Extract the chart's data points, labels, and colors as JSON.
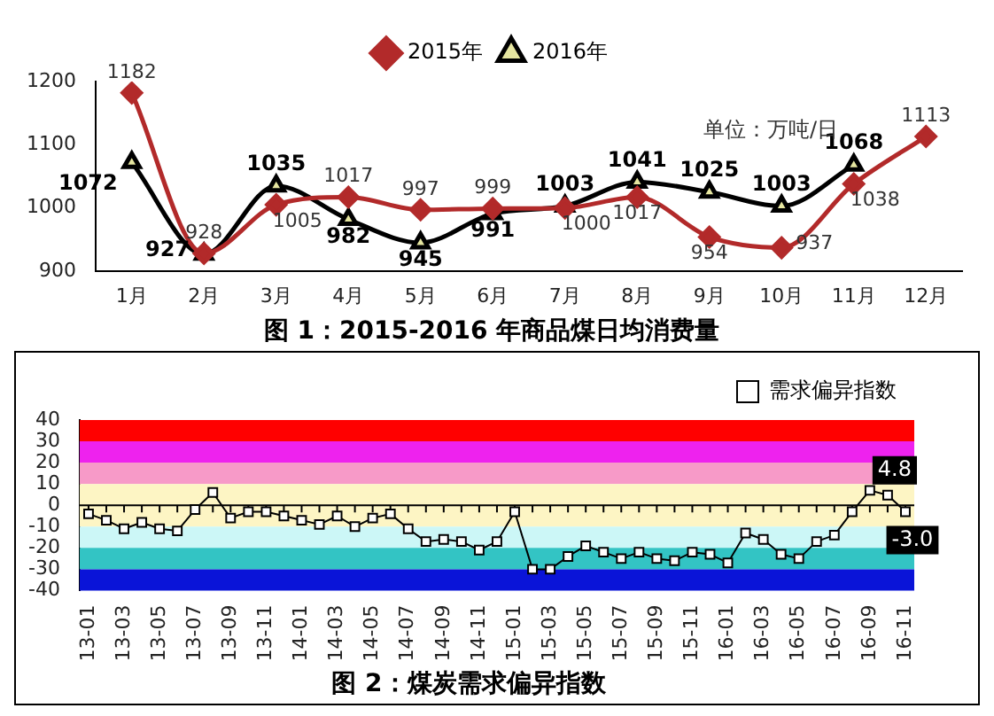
{
  "chart_data": [
    {
      "type": "line",
      "title": "图 1：2015-2016 年商品煤日均消费量",
      "annotations": [
        "单位：万吨/日"
      ],
      "categories": [
        "1月",
        "2月",
        "3月",
        "4月",
        "5月",
        "6月",
        "7月",
        "8月",
        "9月",
        "10月",
        "11月",
        "12月"
      ],
      "series": [
        {
          "name": "2015年",
          "color": "#b22a2a",
          "marker": "diamond",
          "values": [
            1182,
            928,
            1005,
            1017,
            997,
            999,
            1000,
            1017,
            954,
            937,
            1038,
            1113
          ]
        },
        {
          "name": "2016年",
          "color": "#000000",
          "marker": "triangle",
          "values": [
            1072,
            927,
            1035,
            982,
            945,
            991,
            1003,
            1041,
            1025,
            1003,
            1068,
            null
          ]
        }
      ],
      "ylim": [
        900,
        1200
      ],
      "yticks": [
        900,
        1000,
        1100,
        1200
      ],
      "grid": false,
      "legend": "top",
      "data_labels": true
    },
    {
      "type": "line",
      "title": "图 2：煤炭需求偏异指数",
      "categories": [
        "13-01",
        null,
        "13-03",
        null,
        "13-05",
        null,
        "13-07",
        null,
        "13-09",
        null,
        "13-11",
        null,
        "14-01",
        null,
        "14-03",
        null,
        "14-05",
        null,
        "14-07",
        null,
        "14-09",
        null,
        "14-11",
        null,
        "15-01",
        null,
        "15-03",
        null,
        "15-05",
        null,
        "15-07",
        null,
        "15-09",
        null,
        "15-11",
        null,
        "16-01",
        null,
        "16-03",
        null,
        "16-05",
        null,
        "16-07",
        null,
        "16-09",
        null,
        "16-11"
      ],
      "series": [
        {
          "name": "需求偏异指数",
          "color": "#000000",
          "marker": "square",
          "values": [
            -4,
            -7,
            -11,
            -8,
            -11,
            -12,
            -2,
            6,
            -6,
            -3,
            -3,
            -5,
            -7,
            -9,
            -5,
            -10,
            -6,
            -4,
            -11,
            -17,
            -16,
            -17,
            -21,
            -17,
            -3,
            -30,
            -30,
            -24,
            -19,
            -22,
            -25,
            -22,
            -25,
            -26,
            -22,
            -23,
            -27,
            -13,
            -16,
            -23,
            -25,
            -17,
            -14,
            -3,
            7,
            4.8,
            -3.0
          ],
          "value_labels": [
            null,
            null,
            null,
            null,
            null,
            null,
            null,
            null,
            null,
            null,
            null,
            null,
            null,
            null,
            null,
            null,
            null,
            null,
            null,
            null,
            null,
            null,
            null,
            null,
            null,
            null,
            null,
            null,
            null,
            null,
            null,
            null,
            null,
            null,
            null,
            null,
            null,
            null,
            null,
            null,
            null,
            null,
            null,
            null,
            null,
            "4.8",
            "-3.0"
          ]
        }
      ],
      "ylim": [
        -40,
        40
      ],
      "yticks": [
        -40,
        -30,
        -20,
        -10,
        0,
        10,
        20,
        30,
        40
      ],
      "grid": false,
      "legend": "top right",
      "ref_lines": [
        {
          "axis": "y",
          "value": 0,
          "color": "#000000"
        }
      ],
      "bands": [
        {
          "axis": "y",
          "from": 30,
          "to": 40,
          "color": "#ff0000"
        },
        {
          "axis": "y",
          "from": 20,
          "to": 30,
          "color": "#ee22ee"
        },
        {
          "axis": "y",
          "from": 10,
          "to": 20,
          "color": "#f79ac8"
        },
        {
          "axis": "y",
          "from": 0,
          "to": 10,
          "color": "#fdf5c4"
        },
        {
          "axis": "y",
          "from": -10,
          "to": 0,
          "color": "#fdf5c4"
        },
        {
          "axis": "y",
          "from": -20,
          "to": -10,
          "color": "#ccf7f7"
        },
        {
          "axis": "y",
          "from": -30,
          "to": -20,
          "color": "#33c4c4"
        },
        {
          "axis": "y",
          "from": -40,
          "to": -30,
          "color": "#0a14d8"
        }
      ]
    }
  ]
}
